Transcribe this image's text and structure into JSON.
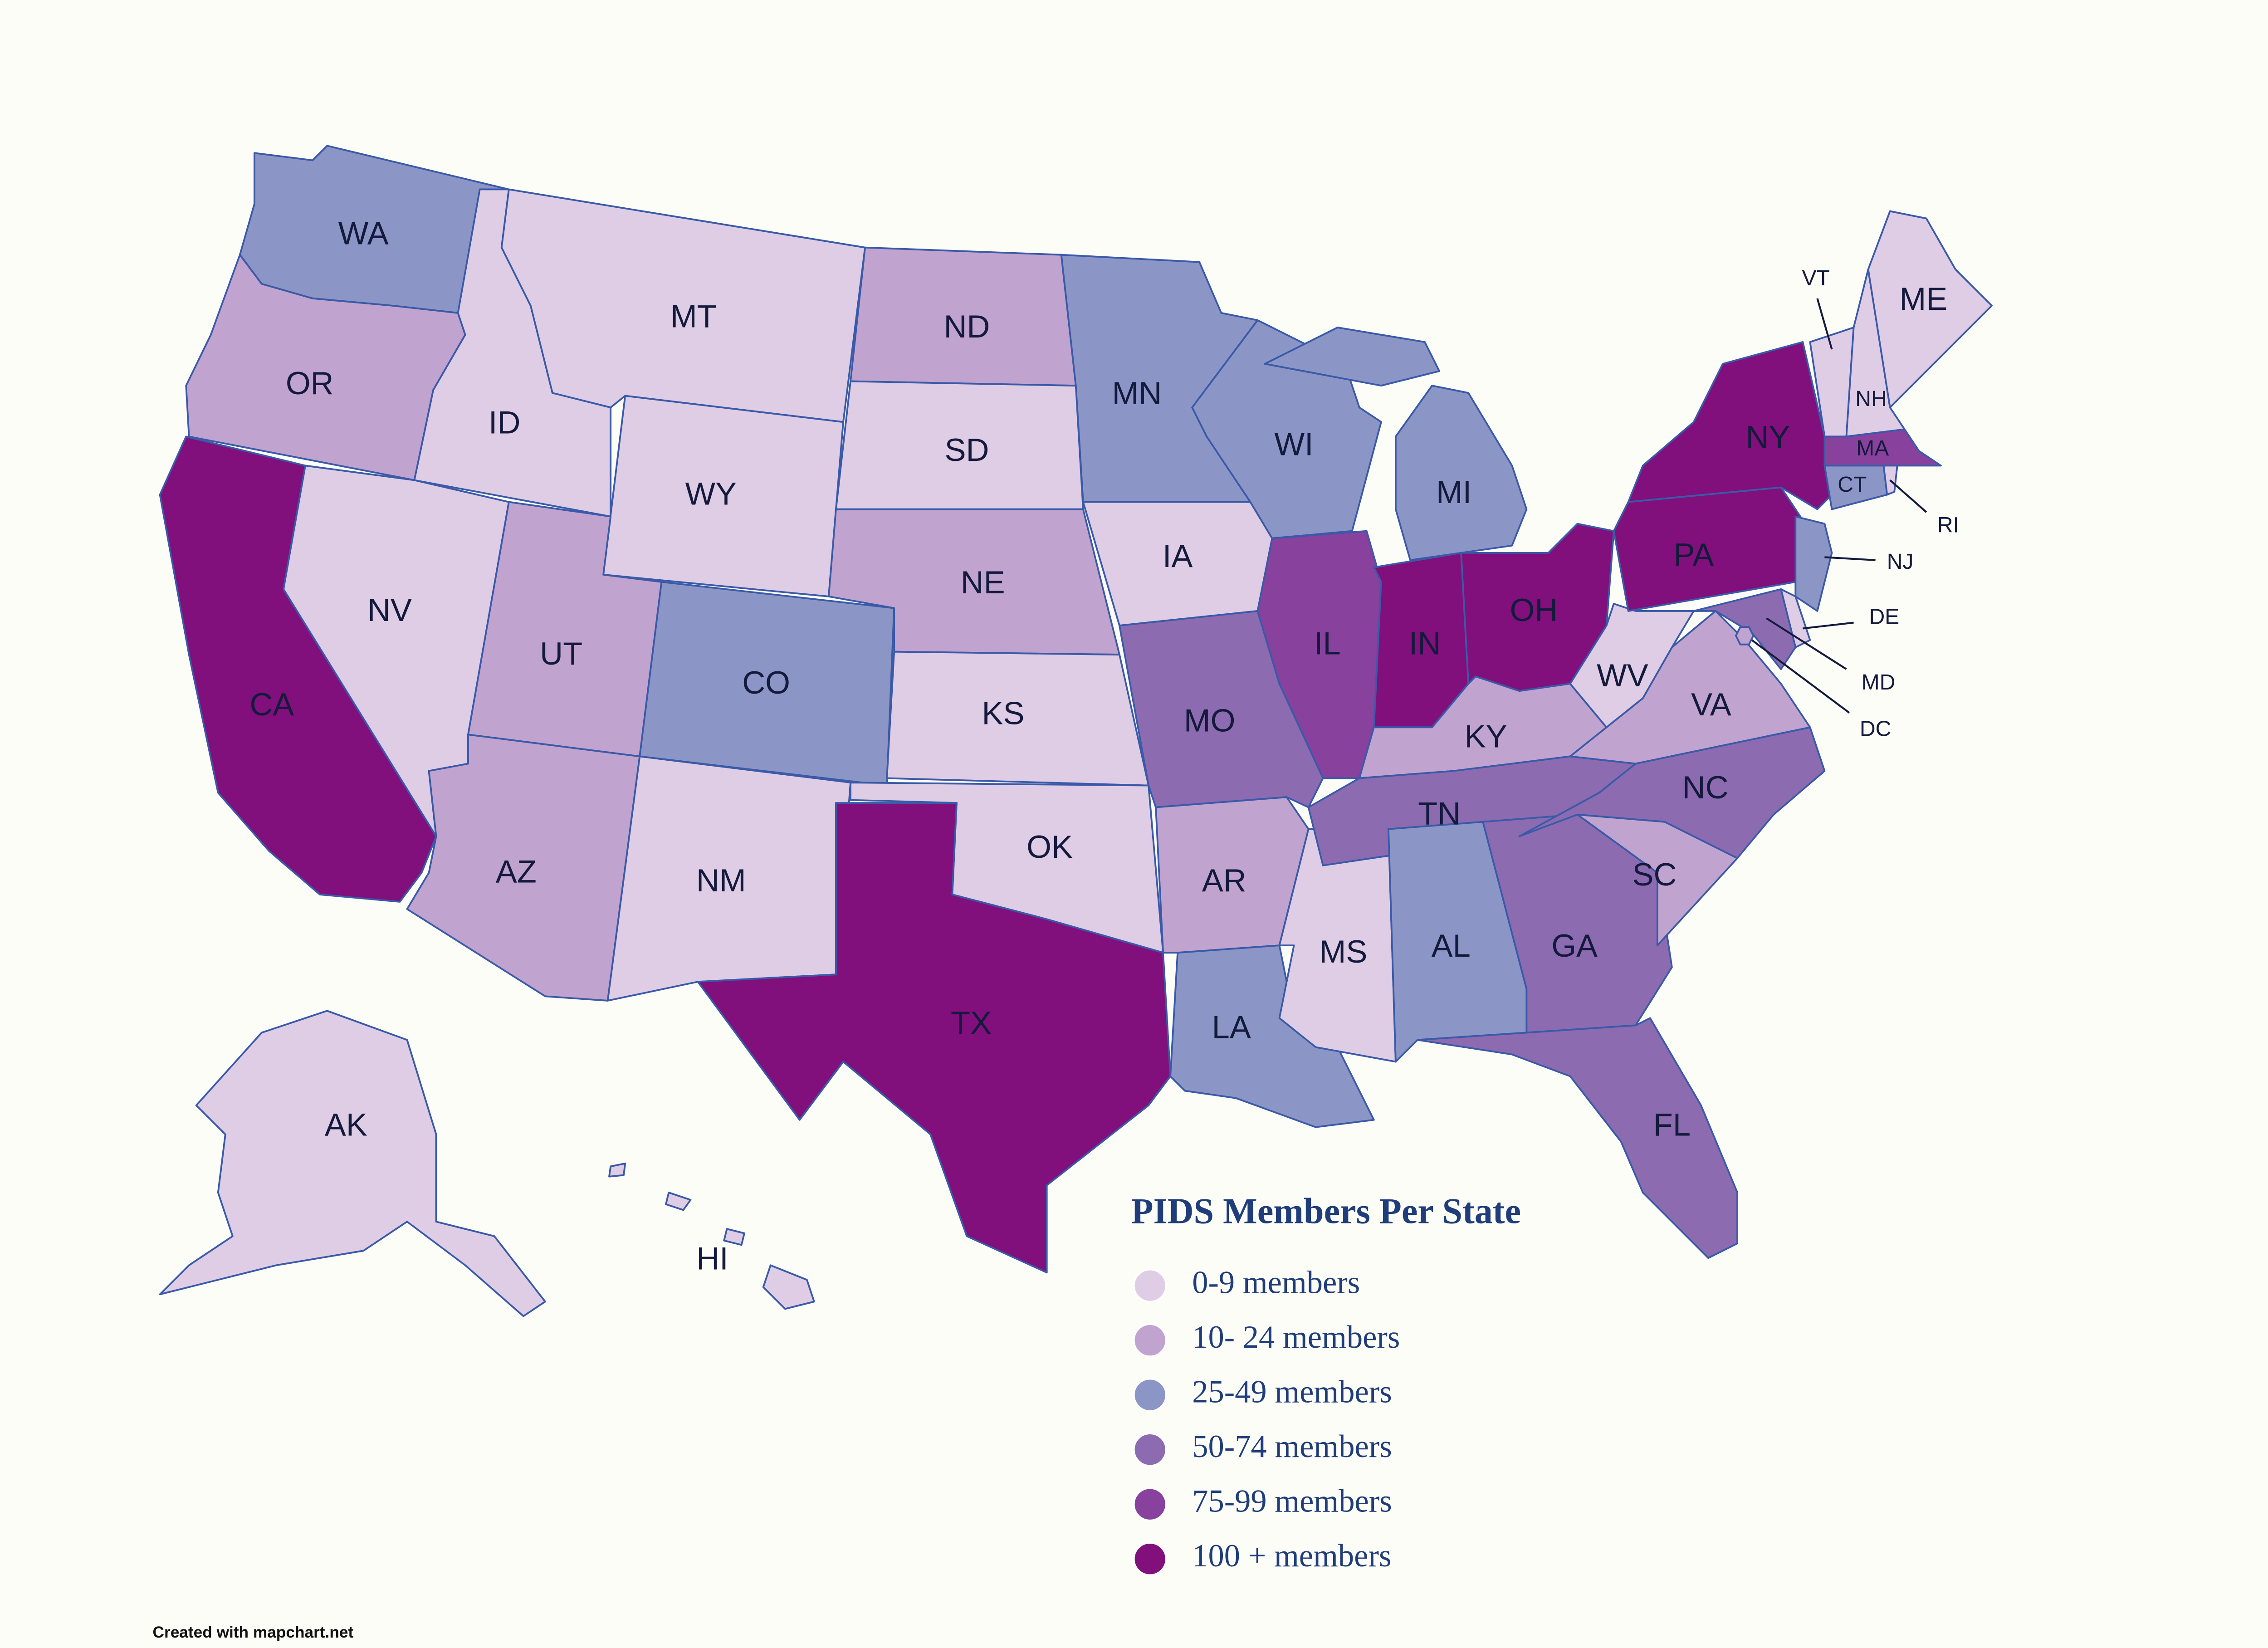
{
  "title": "PIDS Members Per State",
  "legend": [
    {
      "label": "0-9 members",
      "color": "#dfcde6"
    },
    {
      "label": "10- 24 members",
      "color": "#c1a3cf"
    },
    {
      "label": "25-49 members",
      "color": "#8c96c6"
    },
    {
      "label": "50-74 members",
      "color": "#8c6bb1"
    },
    {
      "label": "75-99 members",
      "color": "#88419d"
    },
    {
      "label": "100 + members",
      "color": "#810f7c"
    }
  ],
  "states": [
    {
      "label": "WA",
      "color": "#8c96c6"
    },
    {
      "label": "OR",
      "color": "#c1a3cf"
    },
    {
      "label": "CA",
      "color": "#810f7c"
    },
    {
      "label": "ID",
      "color": "#dfcde6"
    },
    {
      "label": "NV",
      "color": "#dfcde6"
    },
    {
      "label": "MT",
      "color": "#dfcde6"
    },
    {
      "label": "WY",
      "color": "#dfcde6"
    },
    {
      "label": "UT",
      "color": "#c1a3cf"
    },
    {
      "label": "AZ",
      "color": "#c1a3cf"
    },
    {
      "label": "CO",
      "color": "#8c96c6"
    },
    {
      "label": "NM",
      "color": "#dfcde6"
    },
    {
      "label": "ND",
      "color": "#c1a3cf"
    },
    {
      "label": "SD",
      "color": "#dfcde6"
    },
    {
      "label": "NE",
      "color": "#c1a3cf"
    },
    {
      "label": "KS",
      "color": "#dfcde6"
    },
    {
      "label": "OK",
      "color": "#dfcde6"
    },
    {
      "label": "TX",
      "color": "#810f7c"
    },
    {
      "label": "MN",
      "color": "#8c96c6"
    },
    {
      "label": "IA",
      "color": "#dfcde6"
    },
    {
      "label": "MO",
      "color": "#8c6bb1"
    },
    {
      "label": "AR",
      "color": "#c1a3cf"
    },
    {
      "label": "LA",
      "color": "#8c96c6"
    },
    {
      "label": "WI",
      "color": "#8c96c6"
    },
    {
      "label": "IL",
      "color": "#88419d"
    },
    {
      "label": "MS",
      "color": "#dfcde6"
    },
    {
      "label": "MI",
      "color": "#8c96c6"
    },
    {
      "label": "IN",
      "color": "#810f7c"
    },
    {
      "label": "OH",
      "color": "#810f7c"
    },
    {
      "label": "KY",
      "color": "#c1a3cf"
    },
    {
      "label": "TN",
      "color": "#8c6bb1"
    },
    {
      "label": "AL",
      "color": "#8c96c6"
    },
    {
      "label": "GA",
      "color": "#8c6bb1"
    },
    {
      "label": "FL",
      "color": "#8c6bb1"
    },
    {
      "label": "SC",
      "color": "#c1a3cf"
    },
    {
      "label": "NC",
      "color": "#8c6bb1"
    },
    {
      "label": "VA",
      "color": "#c1a3cf"
    },
    {
      "label": "WV",
      "color": "#dfcde6"
    },
    {
      "label": "PA",
      "color": "#810f7c"
    },
    {
      "label": "NY",
      "color": "#810f7c"
    },
    {
      "label": "NJ",
      "color": "#8c96c6"
    },
    {
      "label": "DE",
      "color": "#dfcde6"
    },
    {
      "label": "MD",
      "color": "#8c6bb1"
    },
    {
      "label": "DC",
      "color": "#c1a3cf"
    },
    {
      "label": "CT",
      "color": "#8c96c6"
    },
    {
      "label": "RI",
      "color": "#dfcde6"
    },
    {
      "label": "MA",
      "color": "#88419d"
    },
    {
      "label": "VT",
      "color": "#dfcde6"
    },
    {
      "label": "NH",
      "color": "#dfcde6"
    },
    {
      "label": "ME",
      "color": "#dfcde6"
    },
    {
      "label": "AK",
      "color": "#dfcde6"
    },
    {
      "label": "HI",
      "color": "#dfcde6"
    }
  ],
  "credit": "Created with mapchart.net"
}
